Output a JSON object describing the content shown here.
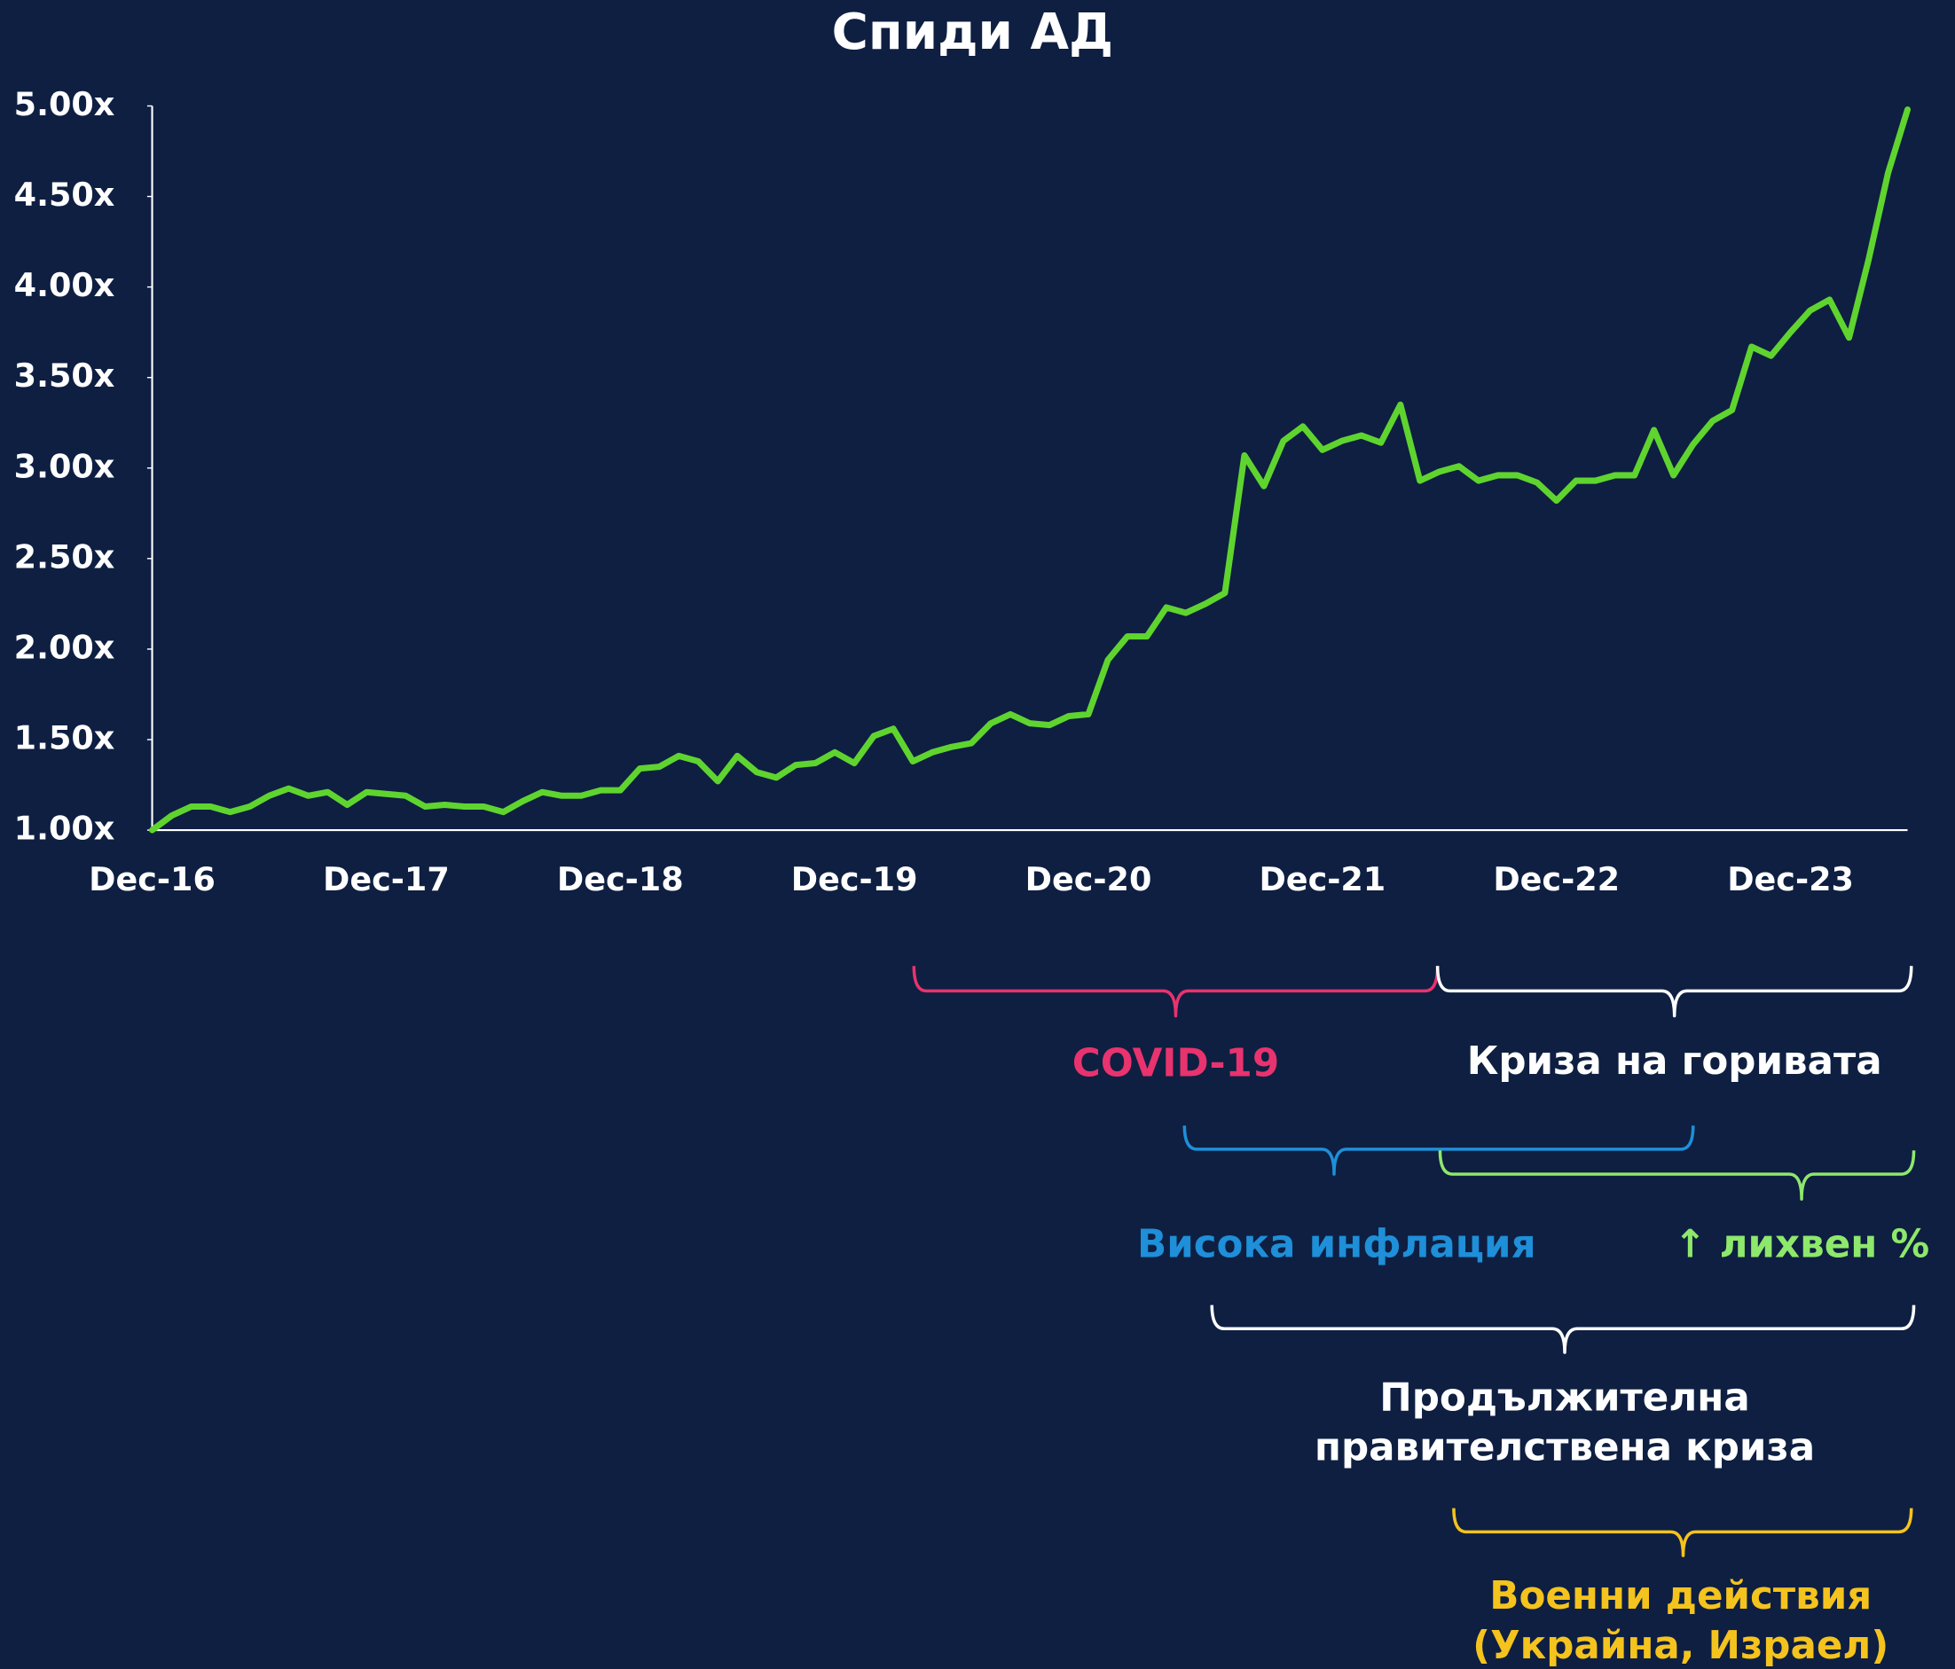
{
  "chart_data": {
    "type": "line",
    "title": "Спиди АД",
    "categories": [
      "Dec-16",
      null,
      null,
      null,
      null,
      null,
      null,
      null,
      null,
      null,
      null,
      null,
      "Dec-17",
      null,
      null,
      null,
      null,
      null,
      null,
      null,
      null,
      null,
      null,
      null,
      "Dec-18",
      null,
      null,
      null,
      null,
      null,
      null,
      null,
      null,
      null,
      null,
      null,
      "Dec-19",
      null,
      null,
      null,
      null,
      null,
      null,
      null,
      null,
      null,
      null,
      null,
      "Dec-20",
      null,
      null,
      null,
      null,
      null,
      null,
      null,
      null,
      null,
      null,
      null,
      "Dec-21",
      null,
      null,
      null,
      null,
      null,
      null,
      null,
      null,
      null,
      null,
      null,
      "Dec-22",
      null,
      null,
      null,
      null,
      null,
      null,
      null,
      null,
      null,
      null,
      null,
      "Dec-23",
      null,
      null,
      null,
      null,
      null,
      null
    ],
    "series": [
      {
        "name": "Спиди АД",
        "color": "#5fd42f",
        "values": [
          1.0,
          1.08,
          1.13,
          1.13,
          1.1,
          1.13,
          1.19,
          1.23,
          1.19,
          1.21,
          1.14,
          1.21,
          1.2,
          1.19,
          1.13,
          1.14,
          1.13,
          1.13,
          1.1,
          1.16,
          1.21,
          1.19,
          1.19,
          1.22,
          1.22,
          1.34,
          1.35,
          1.41,
          1.38,
          1.27,
          1.41,
          1.32,
          1.29,
          1.36,
          1.37,
          1.43,
          1.37,
          1.52,
          1.56,
          1.38,
          1.43,
          1.46,
          1.48,
          1.59,
          1.64,
          1.59,
          1.58,
          1.63,
          1.64,
          1.94,
          2.07,
          2.07,
          2.23,
          2.2,
          2.25,
          2.31,
          3.07,
          2.9,
          3.15,
          3.23,
          3.1,
          3.15,
          3.18,
          3.14,
          3.35,
          2.93,
          2.98,
          3.01,
          2.93,
          2.96,
          2.96,
          2.92,
          2.82,
          2.93,
          2.93,
          2.96,
          2.96,
          3.21,
          2.96,
          3.13,
          3.26,
          3.32,
          3.67,
          3.62,
          3.75,
          3.87,
          3.93,
          3.72,
          4.15,
          4.63,
          4.98
        ]
      }
    ],
    "ylim": [
      1,
      5
    ],
    "yticks": [
      {
        "value": 1,
        "label": "1.00x"
      },
      {
        "value": 1.5,
        "label": "1.50x"
      },
      {
        "value": 2,
        "label": "2.00x"
      },
      {
        "value": 2.5,
        "label": "2.50x"
      },
      {
        "value": 3,
        "label": "3.00x"
      },
      {
        "value": 3.5,
        "label": "3.50x"
      },
      {
        "value": 4,
        "label": "4.00x"
      },
      {
        "value": 4.5,
        "label": "4.50x"
      },
      {
        "value": 5,
        "label": "5.00x"
      }
    ],
    "grid": false,
    "annotations": [
      {
        "lines": [
          "COVID-19"
        ],
        "color": "#e8336e"
      },
      {
        "lines": [
          "Криза на горивата"
        ],
        "color": "#ffffff"
      },
      {
        "lines": [
          "Висока инфлация"
        ],
        "color": "#1e8fd8"
      },
      {
        "lines": [
          "↑ лихвен %"
        ],
        "color": "#8ee86b"
      },
      {
        "lines": [
          "Продължителна",
          "правителствена криза"
        ],
        "color": "#ffffff"
      },
      {
        "lines": [
          "Военни действия",
          "(Украйна, Израел)"
        ],
        "color": "#f5c31d"
      }
    ]
  }
}
